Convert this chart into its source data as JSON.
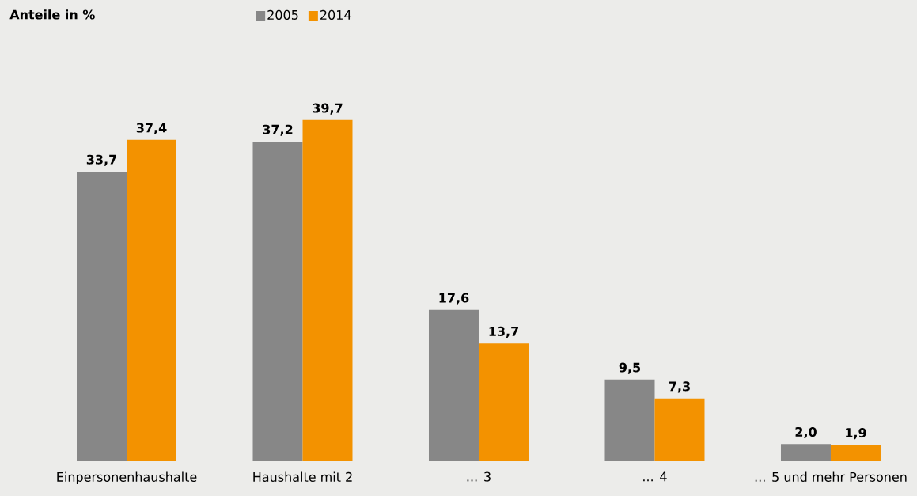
{
  "chart_data": {
    "type": "bar",
    "annotations": [
      "Anteile in %"
    ],
    "categories": [
      "Einpersonenhaushalte",
      "Haushalte mit 2",
      "... 3",
      "... 4",
      "... 5 und mehr Personen"
    ],
    "series": [
      {
        "name": "2005",
        "color": "#878787",
        "values": [
          33.7,
          37.2,
          17.6,
          9.5,
          2.0
        ],
        "value_labels": [
          "33,7",
          "37,2",
          "17,6",
          "9,5",
          "2,0"
        ]
      },
      {
        "name": "2014",
        "color": "#f39200",
        "values": [
          37.4,
          39.7,
          13.7,
          7.3,
          1.9
        ],
        "value_labels": [
          "37,4",
          "39,7",
          "13,7",
          "7,3",
          "1,9"
        ]
      }
    ],
    "legend": "top left"
  }
}
